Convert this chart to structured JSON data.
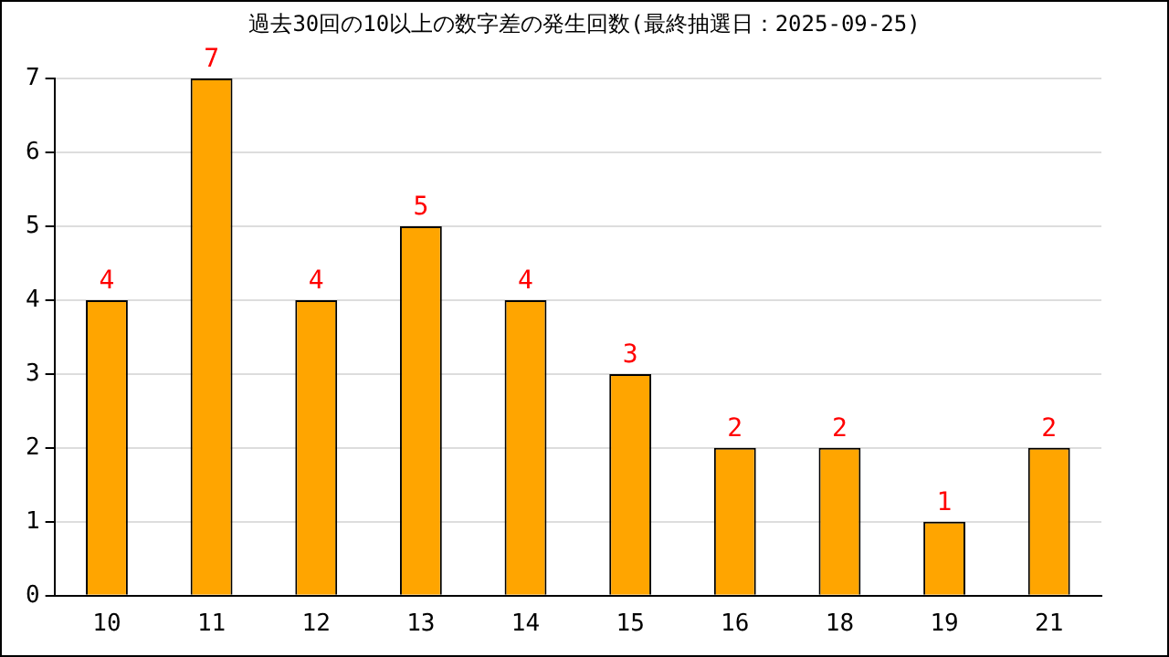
{
  "chart_data": {
    "type": "bar",
    "title": "過去30回の10以上の数字差の発生回数(最終抽選日：2025-09-25)",
    "categories": [
      "10",
      "11",
      "12",
      "13",
      "14",
      "15",
      "16",
      "18",
      "19",
      "21"
    ],
    "values": [
      4,
      7,
      4,
      5,
      4,
      3,
      2,
      2,
      1,
      2
    ],
    "color": "#ffa500",
    "ylim": [
      0,
      7
    ],
    "yticks": [
      0,
      1,
      2,
      3,
      4,
      5,
      6,
      7
    ],
    "grid": "y",
    "data_labels": true,
    "legend": false
  }
}
